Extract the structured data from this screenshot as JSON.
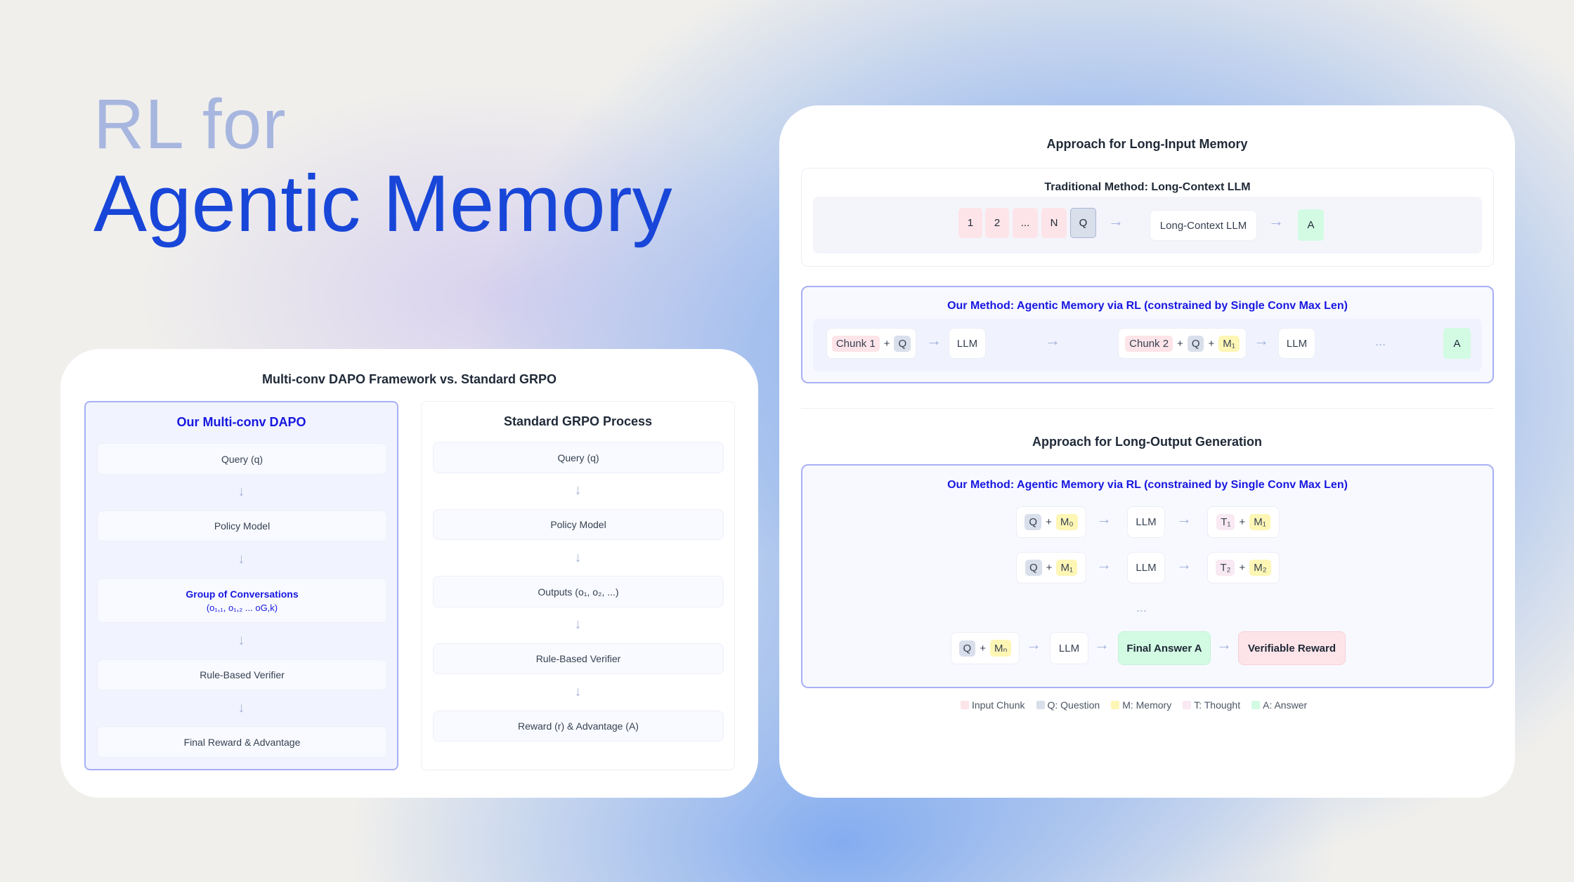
{
  "headline": {
    "line1": "RL for",
    "line2": "Agentic Memory"
  },
  "left": {
    "title": "Multi-conv DAPO Framework vs. Standard GRPO",
    "ours": {
      "title": "Our Multi-conv DAPO",
      "steps": [
        "Query (q)",
        "Policy Model",
        "Group of Conversations",
        "Rule-Based Verifier",
        "Final Reward & Advantage"
      ],
      "group_sub": "(o₁,₁, o₁,₂ ... oG,k)"
    },
    "grpo": {
      "title": "Standard GRPO Process",
      "steps": [
        "Query (q)",
        "Policy Model",
        "Outputs (o₁, o₂, ...)",
        "Rule-Based Verifier",
        "Reward (r) & Advantage (A)"
      ]
    }
  },
  "right": {
    "input_title": "Approach for Long-Input Memory",
    "traditional": {
      "title": "Traditional Method: Long-Context LLM",
      "chunks": [
        "1",
        "2",
        "...",
        "N"
      ],
      "q": "Q",
      "llm": "Long-Context LLM",
      "answer": "A"
    },
    "ours_input": {
      "title": "Our Method: Agentic Memory via RL (constrained by Single Conv Max Len)",
      "chunk1": "Chunk 1",
      "chunk2": "Chunk 2",
      "plus": "+",
      "q": "Q",
      "m1": "M₁",
      "llm": "LLM",
      "dots": "...",
      "answer": "A"
    },
    "output_title": "Approach for Long-Output Generation",
    "ours_output": {
      "title": "Our Method: Agentic Memory via RL (constrained by Single Conv Max Len)",
      "rows": [
        {
          "q": "Q",
          "m_in": "M₀",
          "llm": "LLM",
          "t": "T₁",
          "m_out": "M₁"
        },
        {
          "q": "Q",
          "m_in": "M₁",
          "llm": "LLM",
          "t": "T₂",
          "m_out": "M₂"
        }
      ],
      "dots": "...",
      "final": {
        "q": "Q",
        "m": "Mₙ",
        "llm": "LLM",
        "answer": "Final Answer A",
        "reward": "Verifiable Reward"
      }
    },
    "legend": [
      "Input Chunk",
      "Q: Question",
      "M: Memory",
      "T: Thought",
      "A: Answer"
    ],
    "legend_colors": [
      "#fde4e8",
      "#d9dfeb",
      "#fdf6b5",
      "#f9e9f2",
      "#d3fbe4"
    ]
  }
}
